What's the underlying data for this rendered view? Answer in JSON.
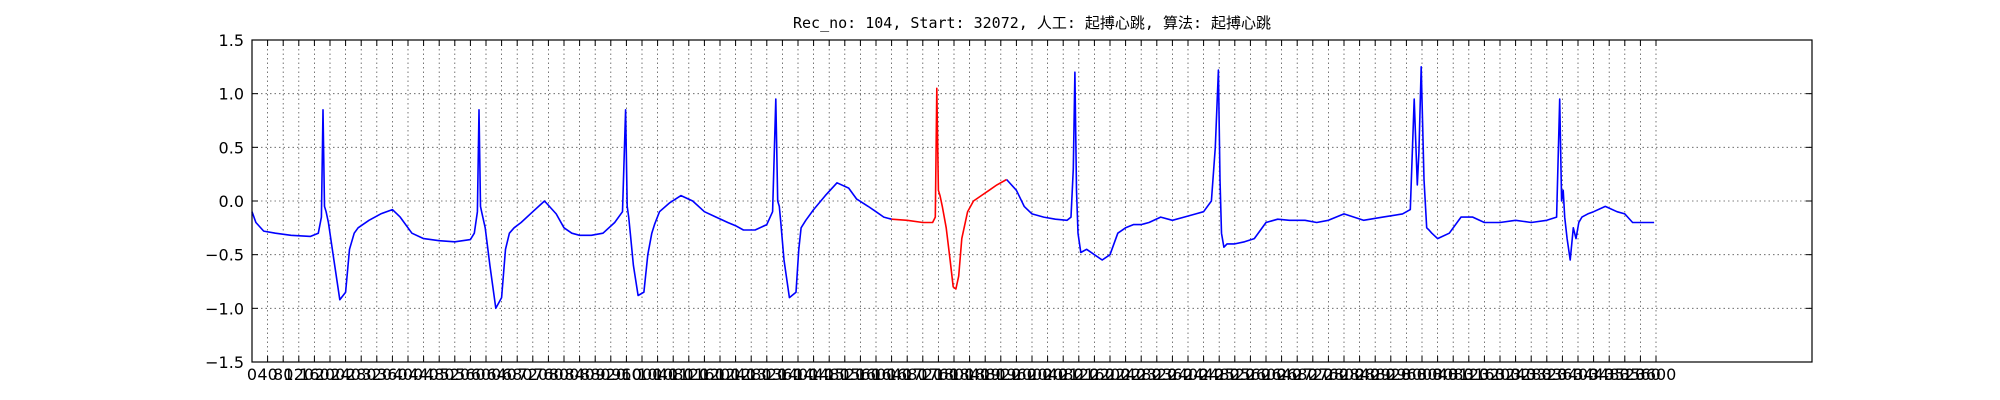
{
  "chart_data": {
    "type": "line",
    "title": "Rec_no: 104, Start: 32072, 人工: 起搏心跳, 算法: 起搏心跳",
    "xlabel": "",
    "ylabel": "",
    "xlim": [
      0,
      4000
    ],
    "ylim": [
      -1.5,
      1.5
    ],
    "grid": true,
    "grid_style": "dotted",
    "y_ticks": [
      "1.5",
      "1.0",
      "0.5",
      "0.0",
      "−0.5",
      "−1.0",
      "−1.5"
    ],
    "y_tick_values": [
      1.5,
      1.0,
      0.5,
      0.0,
      -0.5,
      -1.0,
      -1.5
    ],
    "x_tick_values": [
      0,
      40,
      80,
      120,
      160,
      200,
      240,
      280,
      320,
      360,
      400,
      440,
      480,
      520,
      560,
      600,
      640,
      680,
      720,
      760,
      800,
      840,
      880,
      920,
      960,
      1000,
      1040,
      1080,
      1120,
      1160,
      1200,
      1240,
      1280,
      1320,
      1360,
      1400,
      1440,
      1480,
      1520,
      1560,
      1600,
      1640,
      1680,
      1720,
      1760,
      1800,
      1840,
      1880,
      1920,
      1960,
      2000,
      2040,
      2080,
      2120,
      2160,
      2200,
      2240,
      2280,
      2320,
      2360,
      2400,
      2440,
      2480,
      2520,
      2560,
      2600,
      2640,
      2680,
      2720,
      2760,
      2800,
      2840,
      2880,
      2920,
      2960,
      3000,
      3040,
      3080,
      3120,
      3160,
      3200,
      3240,
      3280,
      3320,
      3360,
      3400,
      3440,
      3480,
      3520,
      3560,
      3600
    ],
    "series": [
      {
        "color": "#0000ff",
        "x": [
          0,
          10,
          30,
          60,
          100,
          150,
          170,
          178,
          182,
          186,
          190,
          196,
          210,
          225,
          240,
          250,
          262,
          272,
          300,
          330,
          360,
          380,
          410,
          440,
          480,
          520,
          560,
          570,
          578,
          582,
          586,
          590,
          598,
          610,
          625,
          640,
          650,
          660,
          672,
          690,
          720,
          750,
          780,
          800,
          820,
          840,
          870,
          900,
          930,
          950,
          958,
          962,
          966,
          970,
          978,
          990,
          1005,
          1015,
          1025,
          1032,
          1045,
          1070,
          1100,
          1130,
          1160,
          1190,
          1220,
          1240,
          1260,
          1290,
          1320,
          1335,
          1343,
          1348,
          1352,
          1356,
          1364,
          1378,
          1395,
          1402,
          1408,
          1420,
          1440,
          1470,
          1500,
          1530,
          1550,
          1580,
          1600,
          1620,
          1640
        ],
        "y": [
          -0.1,
          -0.2,
          -0.28,
          -0.3,
          -0.32,
          -0.33,
          -0.3,
          -0.15,
          0.85,
          -0.05,
          -0.1,
          -0.2,
          -0.55,
          -0.92,
          -0.85,
          -0.45,
          -0.3,
          -0.25,
          -0.18,
          -0.12,
          -0.08,
          -0.15,
          -0.3,
          -0.35,
          -0.37,
          -0.38,
          -0.36,
          -0.3,
          -0.1,
          0.85,
          -0.05,
          -0.12,
          -0.25,
          -0.6,
          -1.0,
          -0.9,
          -0.45,
          -0.3,
          -0.25,
          -0.2,
          -0.1,
          0.0,
          -0.12,
          -0.25,
          -0.3,
          -0.32,
          -0.32,
          -0.3,
          -0.2,
          -0.1,
          0.85,
          -0.05,
          -0.15,
          -0.3,
          -0.6,
          -0.88,
          -0.85,
          -0.5,
          -0.3,
          -0.22,
          -0.1,
          -0.02,
          0.05,
          0.0,
          -0.1,
          -0.15,
          -0.2,
          -0.23,
          -0.27,
          -0.27,
          -0.22,
          -0.1,
          0.95,
          0.0,
          -0.05,
          -0.2,
          -0.55,
          -0.9,
          -0.85,
          -0.45,
          -0.25,
          -0.18,
          -0.08,
          0.05,
          0.17,
          0.12,
          0.02,
          -0.05,
          -0.1,
          -0.15,
          -0.17
        ]
      },
      {
        "color": "#ff0000",
        "x": [
          1640,
          1680,
          1720,
          1745,
          1752,
          1756,
          1760,
          1764,
          1770,
          1780,
          1790,
          1798,
          1805,
          1812,
          1820,
          1835,
          1850,
          1870,
          1890,
          1910,
          1935
        ],
        "y": [
          -0.17,
          -0.18,
          -0.2,
          -0.2,
          -0.15,
          1.05,
          0.1,
          0.05,
          -0.05,
          -0.25,
          -0.55,
          -0.8,
          -0.82,
          -0.7,
          -0.35,
          -0.1,
          0.0,
          0.05,
          0.1,
          0.15,
          0.2
        ]
      },
      {
        "color": "#0000ff",
        "x": [
          1935,
          1960,
          1980,
          2000,
          2030,
          2060,
          2090,
          2100,
          2106,
          2110,
          2114,
          2118,
          2125,
          2140,
          2160,
          2180,
          2200,
          2220,
          2240,
          2260,
          2280,
          2300,
          2330,
          2360,
          2390,
          2420,
          2440,
          2460,
          2470,
          2478,
          2482,
          2486,
          2492,
          2500,
          2520,
          2545,
          2570,
          2600,
          2630,
          2660,
          2700,
          2730,
          2760,
          2800,
          2850,
          2900,
          2950,
          2970,
          2980,
          2988,
          2992,
          2998,
          3005,
          3012,
          3018,
          3025,
          3040,
          3070,
          3100,
          3130,
          3160,
          3200,
          3240,
          3280,
          3320,
          3345,
          3353,
          3358,
          3362,
          3366,
          3372,
          3380,
          3388,
          3395,
          3402,
          3410,
          3425,
          3440,
          3470,
          3500,
          3520,
          3540,
          3560,
          3575,
          3590,
          3595
        ],
        "y": [
          0.2,
          0.1,
          -0.05,
          -0.12,
          -0.15,
          -0.17,
          -0.18,
          -0.15,
          0.3,
          1.2,
          0.1,
          -0.3,
          -0.48,
          -0.45,
          -0.5,
          -0.55,
          -0.5,
          -0.3,
          -0.25,
          -0.22,
          -0.22,
          -0.2,
          -0.15,
          -0.18,
          -0.15,
          -0.12,
          -0.1,
          0.0,
          0.5,
          1.22,
          0.2,
          -0.3,
          -0.43,
          -0.4,
          -0.4,
          -0.38,
          -0.35,
          -0.2,
          -0.17,
          -0.18,
          -0.18,
          -0.2,
          -0.18,
          -0.12,
          -0.18,
          -0.15,
          -0.12,
          -0.08,
          0.95,
          0.15,
          0.45,
          1.25,
          0.2,
          -0.25,
          -0.27,
          -0.3,
          -0.35,
          -0.3,
          -0.15,
          -0.15,
          -0.2,
          -0.2,
          -0.18,
          -0.2,
          -0.18,
          -0.15,
          0.95,
          0.0,
          0.1,
          -0.15,
          -0.35,
          -0.55,
          -0.25,
          -0.35,
          -0.2,
          -0.15,
          -0.12,
          -0.1,
          -0.05,
          -0.1,
          -0.12,
          -0.2,
          -0.2,
          -0.2,
          -0.2,
          -0.2
        ]
      }
    ]
  }
}
